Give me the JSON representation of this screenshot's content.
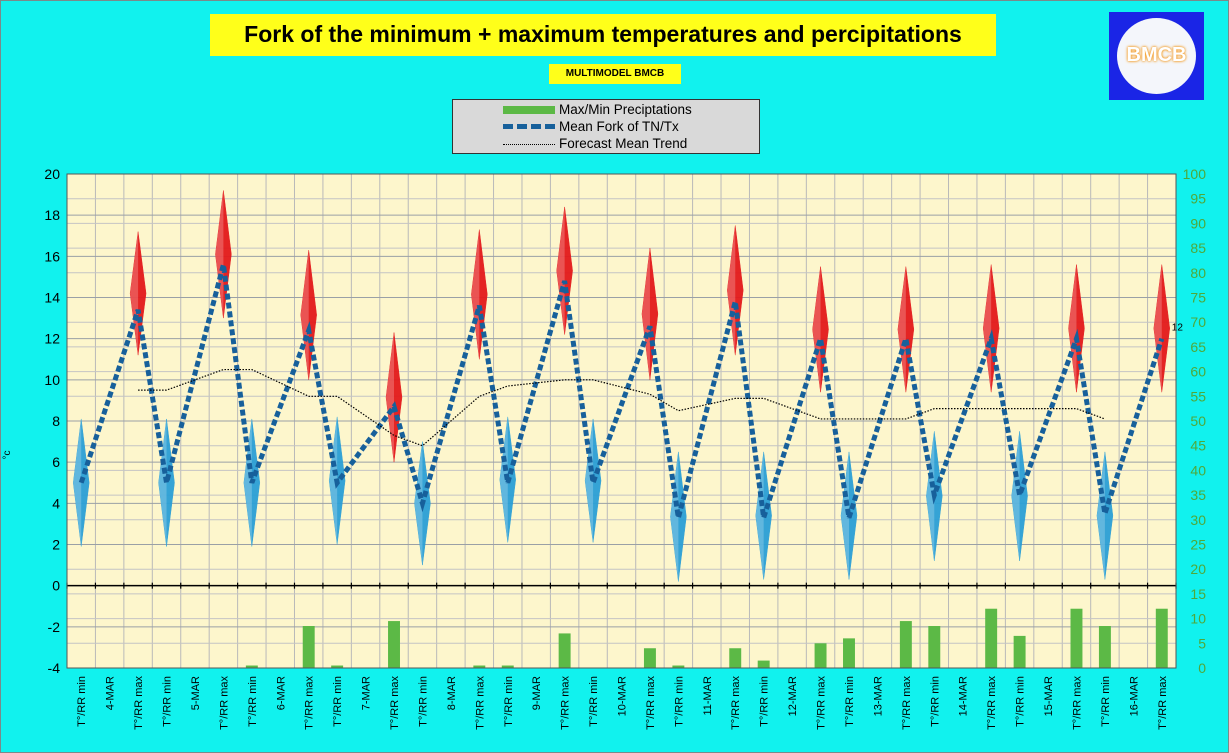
{
  "title": "Fork of the minimum + maximum temperatures and percipitations",
  "subtitle": "MULTIMODEL BMCB",
  "logo_text": "BMCB",
  "legend": [
    {
      "label": "Max/Min Preciptations",
      "color": "#5cb946",
      "style": "bar"
    },
    {
      "label": "Mean Fork of TN/Tx",
      "color": "#17609b",
      "style": "dashed-thick"
    },
    {
      "label": "Forecast Mean Trend",
      "color": "#000000",
      "style": "dotted"
    }
  ],
  "colors": {
    "background": "#11f2ee",
    "plot_area": "#fdf6cc",
    "max_spike": "#e3191b",
    "min_spike": "#2b9fd6",
    "mean_line": "#17609b",
    "precip": "#5cb946",
    "right_axis": "#4fa83a"
  },
  "chart_data": {
    "type": "line",
    "ylabel": "°c",
    "left_axis": {
      "min": -4,
      "max": 20,
      "step": 2,
      "ticks": [
        "-4",
        "-2",
        "0",
        "2",
        "4",
        "6",
        "8",
        "10",
        "12",
        "14",
        "16",
        "18",
        "20"
      ]
    },
    "right_axis": {
      "min": 0,
      "max": 100,
      "step": 5,
      "ticks": [
        "0",
        "5",
        "10",
        "15",
        "20",
        "25",
        "30",
        "35",
        "40",
        "45",
        "50",
        "55",
        "60",
        "65",
        "70",
        "75",
        "80",
        "85",
        "90",
        "95",
        "100"
      ]
    },
    "categories": [
      "T°/RR min",
      "4-MAR",
      "T°/RR max",
      "T°/RR min",
      "5-MAR",
      "T°/RR max",
      "T°/RR min",
      "6-MAR",
      "T°/RR max",
      "T°/RR min",
      "7-MAR",
      "T°/RR max",
      "T°/RR min",
      "8-MAR",
      "T°/RR max",
      "T°/RR min",
      "9-MAR",
      "T°/RR max",
      "T°/RR min",
      "10-MAR",
      "T°/RR max",
      "T°/RR min",
      "11-MAR",
      "T°/RR max",
      "T°/RR min",
      "12-MAR",
      "T°/RR max",
      "T°/RR min",
      "13-MAR",
      "T°/RR max",
      "T°/RR min",
      "14-MAR",
      "T°/RR max",
      "T°/RR min",
      "15-MAR",
      "T°/RR max",
      "T°/RR min",
      "16-MAR",
      "T°/RR max"
    ],
    "series": [
      {
        "name": "Mean Fork of TN/Tx",
        "axis": "left",
        "values": [
          5.0,
          null,
          13.4,
          5.0,
          null,
          15.6,
          5.0,
          null,
          12.4,
          5.0,
          null,
          8.7,
          4.0,
          null,
          13.6,
          5.0,
          null,
          14.8,
          5.0,
          null,
          12.6,
          3.3,
          null,
          13.8,
          3.3,
          null,
          12.0,
          3.3,
          null,
          12.0,
          4.4,
          null,
          12.0,
          4.4,
          null,
          12.0,
          3.5,
          null,
          12.0
        ]
      },
      {
        "name": "Forecast Mean Trend",
        "axis": "left",
        "values": [
          null,
          null,
          9.5,
          9.5,
          null,
          10.5,
          10.5,
          null,
          9.2,
          9.2,
          null,
          7.3,
          6.8,
          null,
          9.2,
          9.7,
          null,
          10.0,
          10.0,
          null,
          9.3,
          8.5,
          null,
          9.1,
          9.1,
          null,
          8.1,
          8.1,
          null,
          8.1,
          8.6,
          null,
          8.6,
          8.6,
          null,
          8.6,
          8.1,
          null,
          null
        ]
      },
      {
        "name": "Max/Min Preciptations",
        "axis": "right",
        "values": [
          null,
          null,
          null,
          null,
          null,
          null,
          0.5,
          null,
          8.5,
          0.5,
          null,
          9.5,
          null,
          null,
          0.5,
          0.5,
          null,
          7.0,
          null,
          null,
          4.0,
          0.5,
          null,
          4.0,
          1.5,
          null,
          5.0,
          6.0,
          null,
          9.5,
          8.5,
          null,
          12.0,
          6.5,
          null,
          12.0,
          8.5,
          null,
          12.0
        ]
      }
    ],
    "spikes": {
      "max": [
        [
          11.2,
          17.2
        ],
        [
          13.0,
          19.2
        ],
        [
          10.0,
          16.3
        ],
        [
          6.0,
          12.3
        ],
        [
          11.0,
          17.3
        ],
        [
          12.2,
          18.4
        ],
        [
          10.0,
          16.4
        ],
        [
          11.2,
          17.5
        ],
        [
          9.4,
          15.5
        ],
        [
          9.4,
          15.5
        ],
        [
          9.4,
          15.6
        ],
        [
          9.4,
          15.6
        ],
        [
          9.4,
          15.6
        ]
      ],
      "min": [
        [
          1.9,
          8.1
        ],
        [
          1.9,
          8.1
        ],
        [
          1.9,
          8.1
        ],
        [
          2.0,
          8.2
        ],
        [
          1.0,
          7.0
        ],
        [
          2.1,
          8.2
        ],
        [
          2.1,
          8.1
        ],
        [
          0.2,
          6.5
        ],
        [
          0.3,
          6.5
        ],
        [
          0.3,
          6.5
        ],
        [
          1.2,
          7.5
        ],
        [
          1.2,
          7.5
        ],
        [
          0.3,
          6.5
        ]
      ]
    },
    "annotations": [
      {
        "text": "12",
        "category_index": 38,
        "value": 12.0
      }
    ],
    "grid": true
  }
}
